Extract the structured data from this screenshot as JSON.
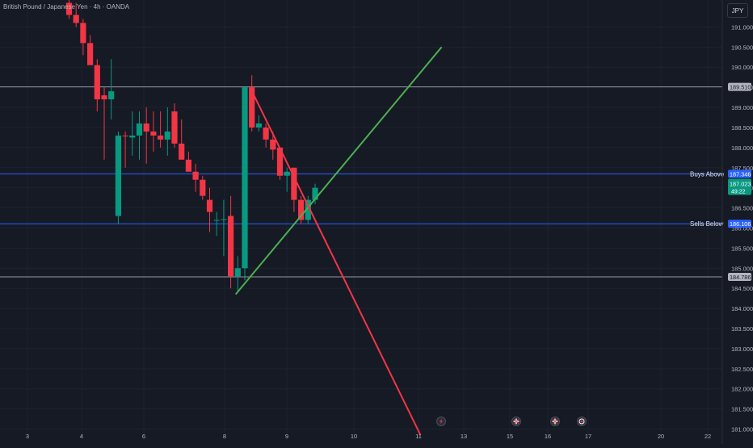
{
  "header": {
    "symbol": "British Pound / Japanese Yen · 4h · OANDA",
    "currency": "JPY"
  },
  "colors": {
    "background": "#161a25",
    "up": "#089981",
    "down": "#f23645",
    "grid": "#1f2330",
    "axis_text": "#b2b5be",
    "green_line": "#4caf50",
    "red_line": "#f23645",
    "blue_level": "#2962ff",
    "gray_level": "#9598a1"
  },
  "chart_data": {
    "type": "candlestick",
    "y_axis": {
      "ylim": [
        180.83,
        191.47
      ],
      "ticks": [
        "191.000",
        "190.500",
        "190.000",
        "189.500",
        "189.000",
        "188.500",
        "188.000",
        "187.500",
        "187.000",
        "186.500",
        "186.000",
        "185.500",
        "185.000",
        "184.500",
        "184.000",
        "183.500",
        "183.000",
        "182.500",
        "182.000",
        "181.500",
        "181.000"
      ]
    },
    "x_axis": {
      "ticks": [
        "3",
        "4",
        "6",
        "8",
        "9",
        "10",
        "11",
        "13",
        "15",
        "16",
        "17",
        "20",
        "22"
      ]
    },
    "candles": [
      {
        "o": 191.6,
        "h": 191.8,
        "l": 191.2,
        "c": 191.3
      },
      {
        "o": 191.3,
        "h": 191.6,
        "l": 191.0,
        "c": 191.1
      },
      {
        "o": 191.1,
        "h": 191.2,
        "l": 190.3,
        "c": 190.6
      },
      {
        "o": 190.6,
        "h": 190.8,
        "l": 190.1,
        "c": 190.05
      },
      {
        "o": 190.05,
        "h": 190.2,
        "l": 188.9,
        "c": 189.2
      },
      {
        "o": 189.3,
        "h": 189.5,
        "l": 187.7,
        "c": 189.2
      },
      {
        "o": 189.2,
        "h": 190.2,
        "l": 188.7,
        "c": 189.4
      },
      {
        "o": 186.3,
        "h": 188.4,
        "l": 186.1,
        "c": 188.3
      },
      {
        "o": 188.3,
        "h": 188.4,
        "l": 187.5,
        "c": 188.28
      },
      {
        "o": 188.25,
        "h": 188.9,
        "l": 187.8,
        "c": 188.3
      },
      {
        "o": 188.3,
        "h": 188.9,
        "l": 187.7,
        "c": 188.6
      },
      {
        "o": 188.6,
        "h": 189.0,
        "l": 187.6,
        "c": 188.4
      },
      {
        "o": 188.4,
        "h": 188.9,
        "l": 187.9,
        "c": 188.3
      },
      {
        "o": 188.3,
        "h": 188.9,
        "l": 188.0,
        "c": 188.2
      },
      {
        "o": 188.2,
        "h": 189.0,
        "l": 187.8,
        "c": 188.4
      },
      {
        "o": 188.9,
        "h": 189.1,
        "l": 188.0,
        "c": 188.1
      },
      {
        "o": 188.1,
        "h": 188.7,
        "l": 187.7,
        "c": 187.7
      },
      {
        "o": 187.7,
        "h": 187.9,
        "l": 187.4,
        "c": 187.4
      },
      {
        "o": 187.4,
        "h": 187.6,
        "l": 186.9,
        "c": 187.2
      },
      {
        "o": 187.2,
        "h": 187.3,
        "l": 186.7,
        "c": 186.8
      },
      {
        "o": 186.7,
        "h": 187.0,
        "l": 185.9,
        "c": 186.4
      },
      {
        "o": 186.2,
        "h": 186.4,
        "l": 185.8,
        "c": 186.2
      },
      {
        "o": 186.2,
        "h": 186.7,
        "l": 185.3,
        "c": 186.22
      },
      {
        "o": 186.3,
        "h": 186.8,
        "l": 184.5,
        "c": 184.8
      },
      {
        "o": 184.8,
        "h": 185.3,
        "l": 184.4,
        "c": 185.0
      },
      {
        "o": 185.0,
        "h": 189.5,
        "l": 184.7,
        "c": 189.5
      },
      {
        "o": 189.5,
        "h": 189.8,
        "l": 188.4,
        "c": 188.5
      },
      {
        "o": 188.5,
        "h": 188.8,
        "l": 188.4,
        "c": 188.6
      },
      {
        "o": 188.5,
        "h": 188.6,
        "l": 188.0,
        "c": 188.2
      },
      {
        "o": 188.2,
        "h": 188.4,
        "l": 187.7,
        "c": 187.95
      },
      {
        "o": 188.0,
        "h": 188.0,
        "l": 187.2,
        "c": 187.3
      },
      {
        "o": 187.3,
        "h": 187.5,
        "l": 186.9,
        "c": 187.4
      },
      {
        "o": 187.5,
        "h": 187.5,
        "l": 186.4,
        "c": 186.7
      },
      {
        "o": 186.7,
        "h": 186.8,
        "l": 186.1,
        "c": 186.2
      },
      {
        "o": 186.2,
        "h": 186.8,
        "l": 186.1,
        "c": 186.7
      },
      {
        "o": 186.7,
        "h": 187.1,
        "l": 186.6,
        "c": 187.0
      }
    ],
    "levels": [
      {
        "price": 189.51,
        "label": "",
        "badge": "189.510",
        "color": "gray"
      },
      {
        "price": 187.346,
        "label": "Buys Above",
        "badge": "187.346",
        "color": "blue"
      },
      {
        "price": 186.106,
        "label": "Sells Below",
        "badge": "186.106",
        "color": "blue"
      },
      {
        "price": 184.786,
        "label": "",
        "badge": "184.786",
        "color": "gray"
      }
    ],
    "current_price": {
      "price": 187.023,
      "label": "187.023",
      "countdown": "49:22"
    },
    "trendlines": [
      {
        "name": "ascending support",
        "color": "green",
        "start": {
          "bar": 23.7,
          "price": 184.35
        },
        "end": {
          "bar": 53.0,
          "price": 190.5
        }
      },
      {
        "name": "descending resistance",
        "color": "red",
        "start": {
          "bar": 25.8,
          "price": 189.48
        },
        "end": {
          "bar": 50.0,
          "price": 180.85
        }
      }
    ],
    "event_markers": [
      "lightning",
      "uk-flag",
      "uk-flag",
      "target"
    ]
  }
}
